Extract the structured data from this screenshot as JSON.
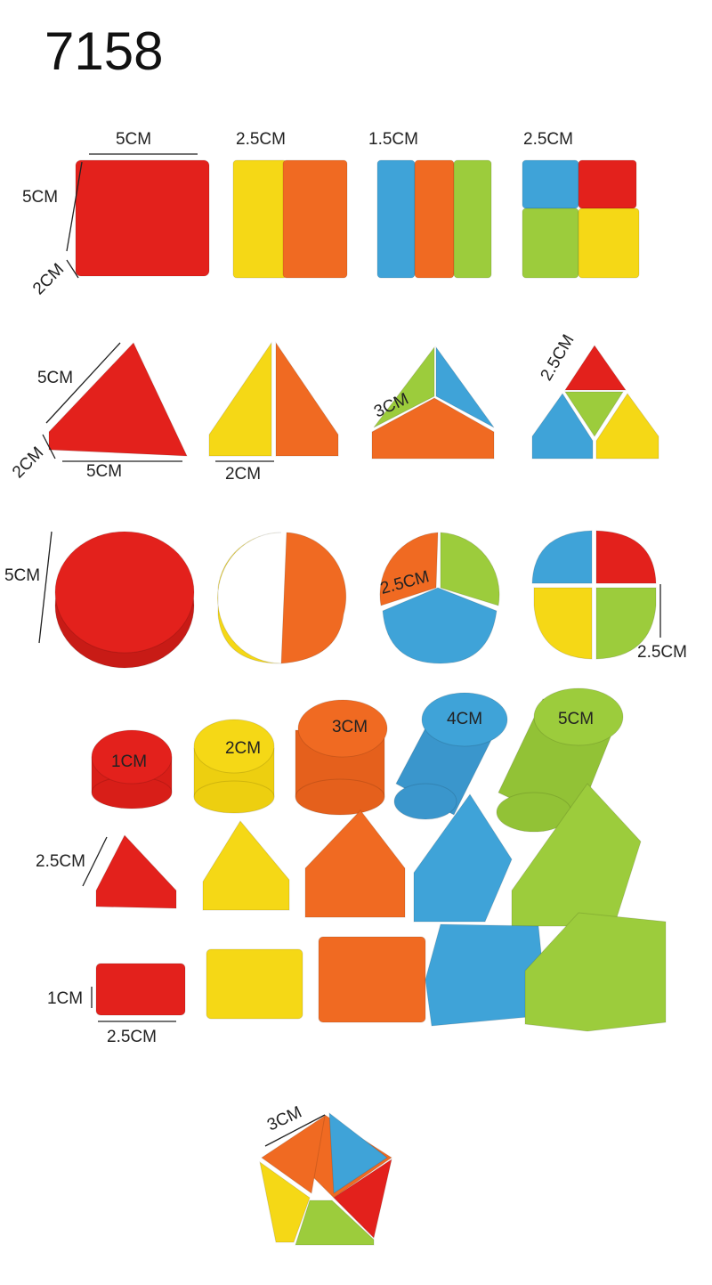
{
  "title": "7158",
  "labels": [
    "5CM",
    "5CM",
    "2CM",
    "2.5CM",
    "1.5CM",
    "2.5CM",
    "5CM",
    "2CM",
    "5CM",
    "2CM",
    "3CM",
    "2.5CM",
    "5CM",
    "2.5CM",
    "2.5CM",
    "1CM",
    "2CM",
    "3CM",
    "4CM",
    "5CM",
    "2.5CM",
    "1CM",
    "2.5CM",
    "3CM"
  ]
}
